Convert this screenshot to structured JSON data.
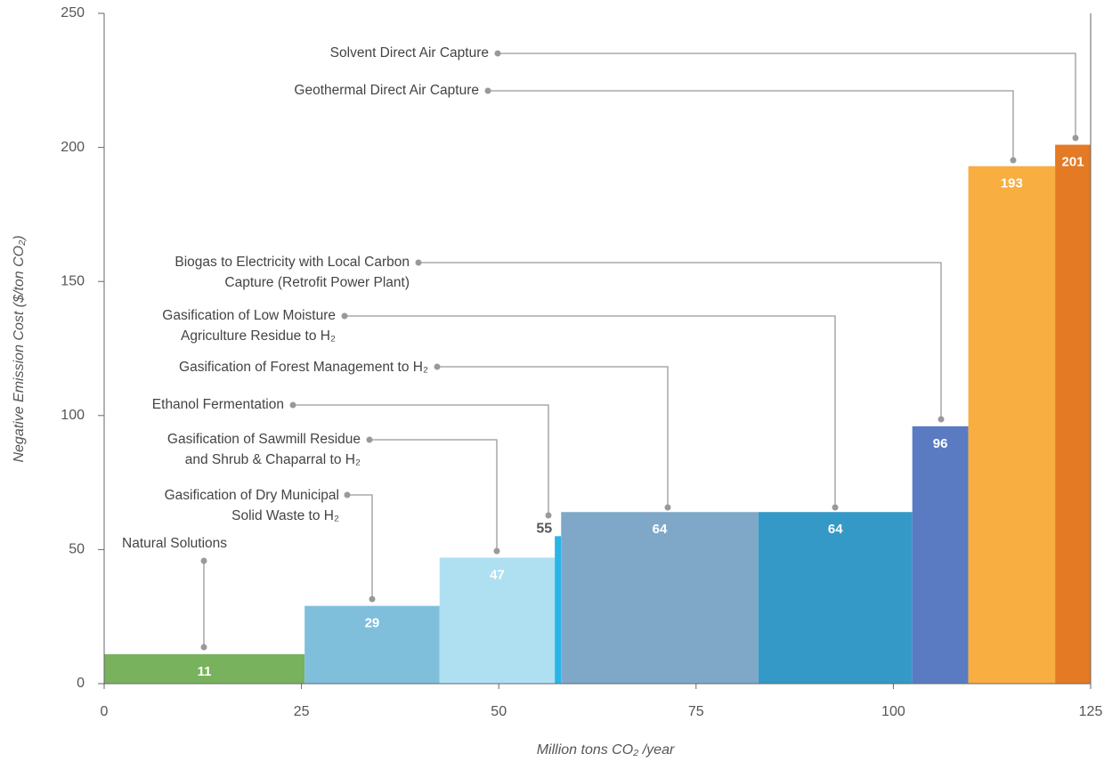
{
  "chart_data": {
    "type": "variable-width-bar",
    "x_label": "Million tons CO₂ /year",
    "y_label": "Negative Emission Cost ($/ton CO₂)",
    "categories": [
      [
        "Natural Solutions"
      ],
      [
        "Gasification of Dry Municipal",
        "Solid Waste to H₂"
      ],
      [
        "Gasification of Sawmill Residue",
        "and Shrub & Chaparral to H₂"
      ],
      [
        "Ethanol Fermentation"
      ],
      [
        "Gasification of Forest Management to H₂"
      ],
      [
        "Gasification of Low Moisture",
        "Agriculture Residue to H₂"
      ],
      [
        "Biogas to Electricity with Local Carbon",
        "Capture (Retrofit Power Plant)"
      ],
      [
        "Geothermal Direct Air Capture"
      ],
      [
        "Solvent Direct Air Capture"
      ]
    ],
    "values": [
      11,
      29,
      47,
      55,
      64,
      64,
      96,
      193,
      201
    ],
    "widths": [
      25.4,
      17.1,
      14.6,
      0.8,
      25,
      19.5,
      7.1,
      11,
      4.5
    ],
    "colors": [
      "#78b25c",
      "#7fbfdc",
      "#aee0f2",
      "#29b5e6",
      "#7fa8c8",
      "#3499c6",
      "#5a7bc2",
      "#f8ae40",
      "#e47a24"
    ],
    "xlim": [
      0,
      125
    ],
    "xticks": [
      0,
      25,
      50,
      75,
      100,
      125
    ],
    "ylim": [
      0,
      250
    ],
    "yticks": [
      0,
      50,
      100,
      150,
      200,
      250
    ]
  }
}
